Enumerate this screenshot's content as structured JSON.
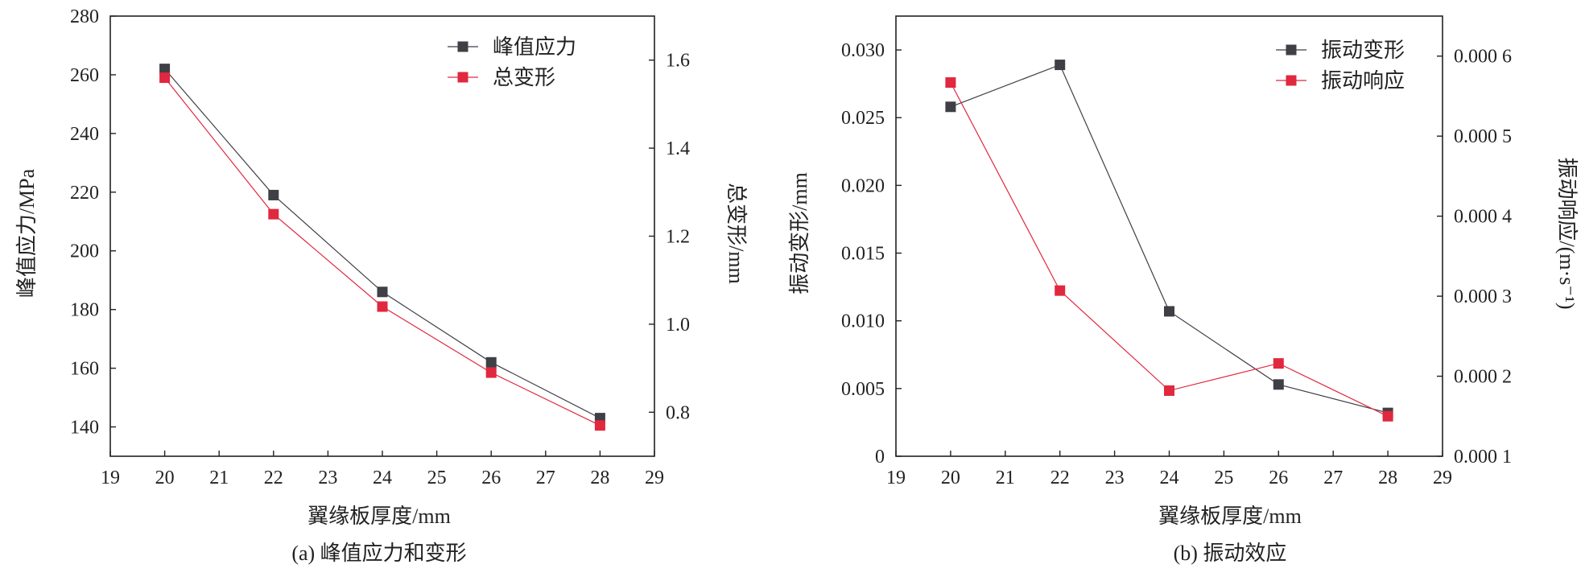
{
  "charts": [
    {
      "id": "a",
      "caption": "(a) 峰值应力和变形",
      "xlabel": "翼缘板厚度/mm",
      "ylabel_left": "峰值应力/MPa",
      "ylabel_right": "总变形/mm"
    },
    {
      "id": "b",
      "caption": "(b) 振动效应",
      "xlabel": "翼缘板厚度/mm",
      "ylabel_left": "振动变形/mm",
      "ylabel_right": "振动响应/(m·s⁻¹)"
    }
  ],
  "chart_data": [
    {
      "type": "line",
      "title": "(a) 峰值应力和变形",
      "xlabel": "翼缘板厚度/mm",
      "ylabel": "峰值应力/MPa",
      "y2label": "总变形/mm",
      "x": [
        20,
        22,
        24,
        26,
        28
      ],
      "xlim": [
        19,
        29
      ],
      "xticks": [
        19,
        20,
        21,
        22,
        23,
        24,
        25,
        26,
        27,
        28,
        29
      ],
      "ylim": [
        130,
        280
      ],
      "yticks": [
        140,
        160,
        180,
        200,
        220,
        240,
        260,
        280
      ],
      "y2lim": [
        0.7,
        1.7
      ],
      "y2ticks": [
        0.8,
        1.0,
        1.2,
        1.4,
        1.6
      ],
      "y2tick_labels": [
        "0.8",
        "1.0",
        "1.2",
        "1.4",
        "1.6"
      ],
      "grid": false,
      "legend_position": "top-right",
      "series": [
        {
          "name": "峰值应力",
          "axis": "left",
          "color": "#3f3f46",
          "values": [
            262,
            219,
            186,
            162,
            143
          ]
        },
        {
          "name": "总变形",
          "axis": "right",
          "color": "#e0283e",
          "values": [
            1.56,
            1.25,
            1.04,
            0.89,
            0.77
          ]
        }
      ]
    },
    {
      "type": "line",
      "title": "(b) 振动效应",
      "xlabel": "翼缘板厚度/mm",
      "ylabel": "振动变形/mm",
      "y2label": "振动响应/(m·s⁻¹)",
      "x": [
        20,
        22,
        24,
        26,
        28
      ],
      "xlim": [
        19,
        29
      ],
      "xticks": [
        19,
        20,
        21,
        22,
        23,
        24,
        25,
        26,
        27,
        28,
        29
      ],
      "ylim": [
        0,
        0.0325
      ],
      "yticks": [
        0,
        0.005,
        0.01,
        0.015,
        0.02,
        0.025,
        0.03
      ],
      "ytick_labels": [
        "0",
        "0.005",
        "0.010",
        "0.015",
        "0.020",
        "0.025",
        "0.030"
      ],
      "y2lim": [
        0.0001,
        0.00065
      ],
      "y2ticks": [
        0.0001,
        0.0002,
        0.0003,
        0.0004,
        0.0005,
        0.0006
      ],
      "y2tick_labels": [
        "0.000 1",
        "0.000 2",
        "0.000 3",
        "0.000 4",
        "0.000 5",
        "0.000 6"
      ],
      "grid": false,
      "legend_position": "top-right",
      "series": [
        {
          "name": "振动变形",
          "axis": "left",
          "color": "#3f3f46",
          "values": [
            0.0258,
            0.0289,
            0.0107,
            0.0053,
            0.0032
          ]
        },
        {
          "name": "振动响应",
          "axis": "right",
          "color": "#e0283e",
          "values": [
            0.000567,
            0.000307,
            0.000182,
            0.000216,
            0.00015
          ]
        }
      ]
    }
  ]
}
